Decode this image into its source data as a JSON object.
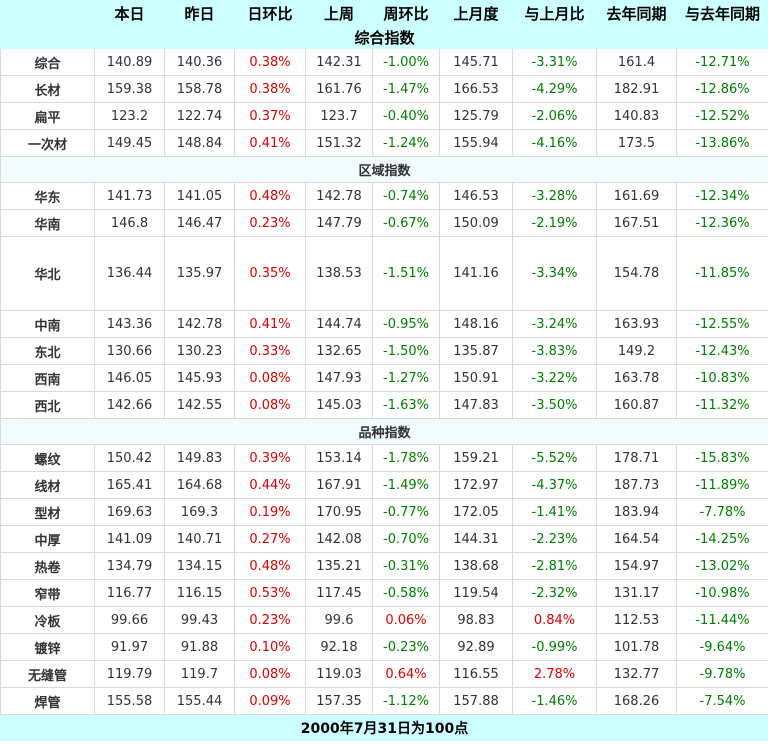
{
  "colors": {
    "header_bg": "#ccffff",
    "positive": "#e00000",
    "negative": "#008000"
  },
  "headers": [
    "",
    "本日",
    "昨日",
    "日环比",
    "上周",
    "周环比",
    "上月度",
    "与上月比",
    "去年同期",
    "与去年同期"
  ],
  "sections": {
    "composite": "综合指数",
    "region": "区域指数",
    "variety": "品种指数"
  },
  "composite_rows": [
    [
      "综合",
      "140.89",
      "140.36",
      "0.38%",
      "142.31",
      "-1.00%",
      "145.71",
      "-3.31%",
      "161.4",
      "-12.71%"
    ],
    [
      "长材",
      "159.38",
      "158.78",
      "0.38%",
      "161.76",
      "-1.47%",
      "166.53",
      "-4.29%",
      "182.91",
      "-12.86%"
    ],
    [
      "扁平",
      "123.2",
      "122.74",
      "0.37%",
      "123.7",
      "-0.40%",
      "125.79",
      "-2.06%",
      "140.83",
      "-12.52%"
    ],
    [
      "一次材",
      "149.45",
      "148.84",
      "0.41%",
      "151.32",
      "-1.24%",
      "155.94",
      "-4.16%",
      "173.5",
      "-13.86%"
    ]
  ],
  "region_rows": [
    [
      "华东",
      "141.73",
      "141.05",
      "0.48%",
      "142.78",
      "-0.74%",
      "146.53",
      "-3.28%",
      "161.69",
      "-12.34%"
    ],
    [
      "华南",
      "146.8",
      "146.47",
      "0.23%",
      "147.79",
      "-0.67%",
      "150.09",
      "-2.19%",
      "167.51",
      "-12.36%"
    ],
    [
      "华北",
      "136.44",
      "135.97",
      "0.35%",
      "138.53",
      "-1.51%",
      "141.16",
      "-3.34%",
      "154.78",
      "-11.85%"
    ],
    [
      "中南",
      "143.36",
      "142.78",
      "0.41%",
      "144.74",
      "-0.95%",
      "148.16",
      "-3.24%",
      "163.93",
      "-12.55%"
    ],
    [
      "东北",
      "130.66",
      "130.23",
      "0.33%",
      "132.65",
      "-1.50%",
      "135.87",
      "-3.83%",
      "149.2",
      "-12.43%"
    ],
    [
      "西南",
      "146.05",
      "145.93",
      "0.08%",
      "147.93",
      "-1.27%",
      "150.91",
      "-3.22%",
      "163.78",
      "-10.83%"
    ],
    [
      "西北",
      "142.66",
      "142.55",
      "0.08%",
      "145.03",
      "-1.63%",
      "147.83",
      "-3.50%",
      "160.87",
      "-11.32%"
    ]
  ],
  "variety_rows": [
    [
      "螺纹",
      "150.42",
      "149.83",
      "0.39%",
      "153.14",
      "-1.78%",
      "159.21",
      "-5.52%",
      "178.71",
      "-15.83%"
    ],
    [
      "线材",
      "165.41",
      "164.68",
      "0.44%",
      "167.91",
      "-1.49%",
      "172.97",
      "-4.37%",
      "187.73",
      "-11.89%"
    ],
    [
      "型材",
      "169.63",
      "169.3",
      "0.19%",
      "170.95",
      "-0.77%",
      "172.05",
      "-1.41%",
      "183.94",
      "-7.78%"
    ],
    [
      "中厚",
      "141.09",
      "140.71",
      "0.27%",
      "142.08",
      "-0.70%",
      "144.31",
      "-2.23%",
      "164.54",
      "-14.25%"
    ],
    [
      "热卷",
      "134.79",
      "134.15",
      "0.48%",
      "135.21",
      "-0.31%",
      "138.68",
      "-2.81%",
      "154.97",
      "-13.02%"
    ],
    [
      "窄带",
      "116.77",
      "116.15",
      "0.53%",
      "117.45",
      "-0.58%",
      "119.54",
      "-2.32%",
      "131.17",
      "-10.98%"
    ],
    [
      "冷板",
      "99.66",
      "99.43",
      "0.23%",
      "99.6",
      "0.06%",
      "98.83",
      "0.84%",
      "112.53",
      "-11.44%"
    ],
    [
      "镀锌",
      "91.97",
      "91.88",
      "0.10%",
      "92.18",
      "-0.23%",
      "92.89",
      "-0.99%",
      "101.78",
      "-9.64%"
    ],
    [
      "无缝管",
      "119.79",
      "119.7",
      "0.08%",
      "119.03",
      "0.64%",
      "116.55",
      "2.78%",
      "132.77",
      "-9.78%"
    ],
    [
      "焊管",
      "155.58",
      "155.44",
      "0.09%",
      "157.35",
      "-1.12%",
      "157.88",
      "-1.46%",
      "168.26",
      "-7.54%"
    ]
  ],
  "footer": "2000年7月31日为100点"
}
